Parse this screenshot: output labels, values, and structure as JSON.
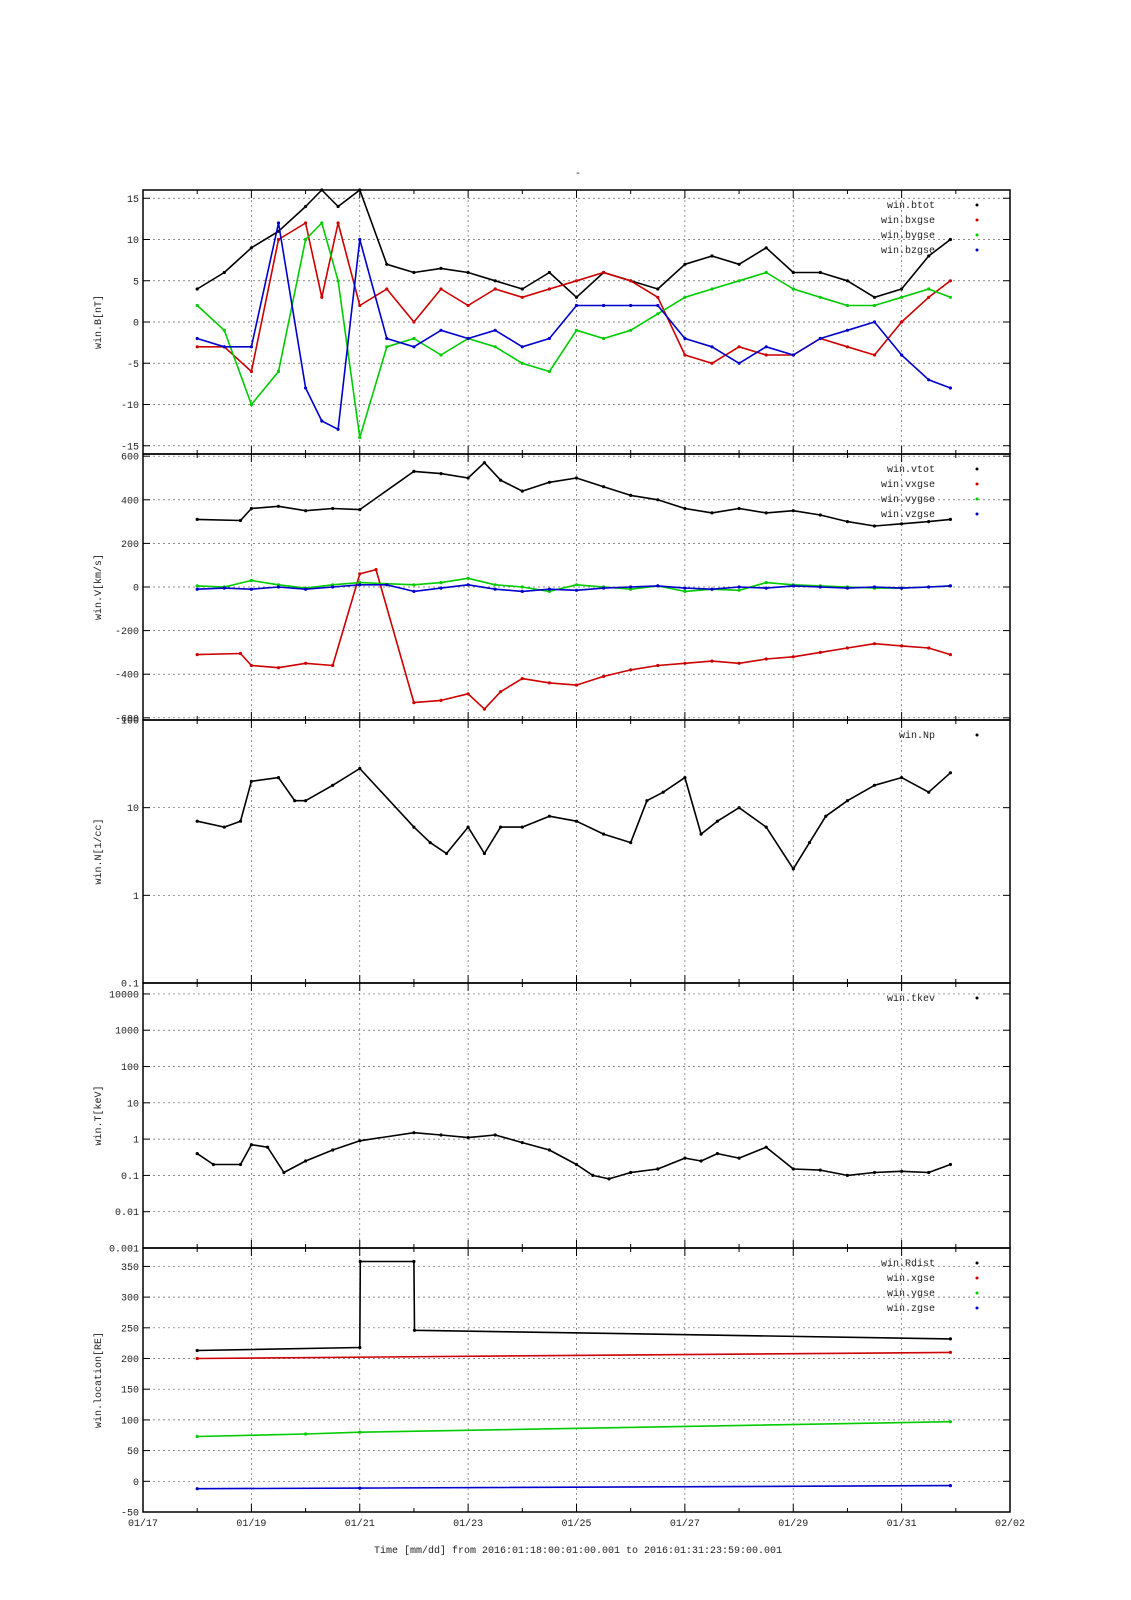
{
  "figure": {
    "title": "-",
    "x_axis": {
      "tick_labels": [
        "01/17",
        "01/19",
        "01/21",
        "01/23",
        "01/25",
        "01/27",
        "01/29",
        "01/31",
        "02/02"
      ],
      "xlabel": "Time [mm/dd]  from 2016:01:18:00:01:00.001  to  2016:01:31:23:59:00.001"
    }
  },
  "colors": {
    "black": "#000000",
    "red": "#cc0000",
    "green": "#00cc00",
    "blue": "#0000cc"
  },
  "chart_data": [
    {
      "type": "scatter",
      "ylabel": "win.B[nT]",
      "xlim": [
        17,
        33
      ],
      "ylim": [
        -16,
        16
      ],
      "yticks": [
        -15,
        -10,
        -5,
        0,
        5,
        10,
        15
      ],
      "legend_position": "top-right",
      "series": [
        {
          "name": "win.btot",
          "color": "#000000",
          "x": [
            18,
            18.5,
            19,
            19.5,
            20,
            20.3,
            20.6,
            21,
            21.5,
            22,
            22.5,
            23,
            23.5,
            24,
            24.5,
            25,
            25.5,
            26,
            26.5,
            27,
            27.5,
            28,
            28.5,
            29,
            29.5,
            30,
            30.5,
            31,
            31.5,
            31.9
          ],
          "y": [
            4,
            6,
            9,
            11,
            14,
            16,
            14,
            16,
            7,
            6,
            6.5,
            6,
            5,
            4,
            6,
            3,
            6,
            5,
            4,
            7,
            8,
            7,
            9,
            6,
            6,
            5,
            3,
            4,
            8,
            10
          ]
        },
        {
          "name": "win.bxgse",
          "color": "#cc0000",
          "x": [
            18,
            18.5,
            19,
            19.5,
            20,
            20.3,
            20.6,
            21,
            21.5,
            22,
            22.5,
            23,
            23.5,
            24,
            24.5,
            25,
            25.5,
            26,
            26.5,
            27,
            27.5,
            28,
            28.5,
            29,
            29.5,
            30,
            30.5,
            31,
            31.5,
            31.9
          ],
          "y": [
            -3,
            -3,
            -6,
            10,
            12,
            3,
            12,
            2,
            4,
            0,
            4,
            2,
            4,
            3,
            4,
            5,
            6,
            5,
            3,
            -4,
            -5,
            -3,
            -4,
            -4,
            -2,
            -3,
            -4,
            0,
            3,
            5
          ]
        },
        {
          "name": "win.bygse",
          "color": "#00cc00",
          "x": [
            18,
            18.5,
            19,
            19.5,
            20,
            20.3,
            20.6,
            21,
            21.5,
            22,
            22.5,
            23,
            23.5,
            24,
            24.5,
            25,
            25.5,
            26,
            26.5,
            27,
            27.5,
            28,
            28.5,
            29,
            29.5,
            30,
            30.5,
            31,
            31.5,
            31.9
          ],
          "y": [
            2,
            -1,
            -10,
            -6,
            10,
            12,
            5,
            -14,
            -3,
            -2,
            -4,
            -2,
            -3,
            -5,
            -6,
            -1,
            -2,
            -1,
            1,
            3,
            4,
            5,
            6,
            4,
            3,
            2,
            2,
            3,
            4,
            3
          ]
        },
        {
          "name": "win.bzgse",
          "color": "#0000cc",
          "x": [
            18,
            18.5,
            19,
            19.5,
            20,
            20.3,
            20.6,
            21,
            21.5,
            22,
            22.5,
            23,
            23.5,
            24,
            24.5,
            25,
            25.5,
            26,
            26.5,
            27,
            27.5,
            28,
            28.5,
            29,
            29.5,
            30,
            30.5,
            31,
            31.5,
            31.9
          ],
          "y": [
            -2,
            -3,
            -3,
            12,
            -8,
            -12,
            -13,
            10,
            -2,
            -3,
            -1,
            -2,
            -1,
            -3,
            -2,
            2,
            2,
            2,
            2,
            -2,
            -3,
            -5,
            -3,
            -4,
            -2,
            -1,
            0,
            -4,
            -7,
            -8
          ]
        }
      ]
    },
    {
      "type": "scatter",
      "ylabel": "win.V[km/s]",
      "xlim": [
        17,
        33
      ],
      "ylim": [
        -610,
        610
      ],
      "yticks": [
        -600,
        -400,
        -200,
        0,
        200,
        400,
        600
      ],
      "legend_position": "top-right",
      "series": [
        {
          "name": "win.vtot",
          "color": "#000000",
          "x": [
            18,
            18.8,
            19,
            19.5,
            20,
            20.5,
            21,
            22,
            22.5,
            23,
            23.3,
            23.6,
            24,
            24.5,
            25,
            25.5,
            26,
            26.5,
            27,
            27.5,
            28,
            28.5,
            29,
            29.5,
            30,
            30.5,
            31,
            31.5,
            31.9
          ],
          "y": [
            310,
            305,
            360,
            370,
            350,
            360,
            355,
            530,
            520,
            500,
            570,
            490,
            440,
            480,
            500,
            460,
            420,
            400,
            360,
            340,
            360,
            340,
            350,
            330,
            300,
            280,
            290,
            300,
            310
          ]
        },
        {
          "name": "win.vxgse",
          "color": "#cc0000",
          "x": [
            18,
            18.8,
            19,
            19.5,
            20,
            20.5,
            21,
            21.3,
            22,
            22.5,
            23,
            23.3,
            23.6,
            24,
            24.5,
            25,
            25.5,
            26,
            26.5,
            27,
            27.5,
            28,
            28.5,
            29,
            29.5,
            30,
            30.5,
            31,
            31.5,
            31.9
          ],
          "y": [
            -310,
            -305,
            -360,
            -370,
            -350,
            -360,
            60,
            80,
            -530,
            -520,
            -490,
            -560,
            -480,
            -420,
            -440,
            -450,
            -410,
            -380,
            -360,
            -350,
            -340,
            -350,
            -330,
            -320,
            -300,
            -280,
            -260,
            -270,
            -280,
            -310
          ]
        },
        {
          "name": "win.vygse",
          "color": "#00cc00",
          "x": [
            18,
            18.5,
            19,
            19.5,
            20,
            20.5,
            21,
            22,
            22.5,
            23,
            23.5,
            24,
            24.5,
            25,
            25.5,
            26,
            26.5,
            27,
            27.5,
            28,
            28.5,
            29,
            29.5,
            30,
            30.5,
            31,
            31.5,
            31.9
          ],
          "y": [
            5,
            0,
            30,
            10,
            -5,
            10,
            20,
            10,
            20,
            40,
            10,
            0,
            -20,
            10,
            0,
            -10,
            5,
            -20,
            -10,
            -15,
            20,
            10,
            5,
            0,
            -5,
            -5,
            0,
            5
          ]
        },
        {
          "name": "win.vzgse",
          "color": "#0000cc",
          "x": [
            18,
            18.5,
            19,
            19.5,
            20,
            20.5,
            21,
            21.5,
            22,
            22.5,
            23,
            23.5,
            24,
            24.5,
            25,
            25.5,
            26,
            26.5,
            27,
            27.5,
            28,
            28.5,
            29,
            29.5,
            30,
            30.5,
            31,
            31.5,
            31.9
          ],
          "y": [
            -10,
            -5,
            -10,
            0,
            -10,
            0,
            10,
            10,
            -20,
            -5,
            10,
            -10,
            -20,
            -10,
            -15,
            -5,
            0,
            5,
            -5,
            -10,
            0,
            -5,
            5,
            0,
            -5,
            0,
            -5,
            0,
            5
          ]
        }
      ]
    },
    {
      "type": "scatter",
      "ylabel": "win.N[1/cc]",
      "yscale": "log",
      "xlim": [
        17,
        33
      ],
      "ylim": [
        0.1,
        100
      ],
      "yticks": [
        0.1,
        1,
        10,
        100
      ],
      "legend_position": "top-right",
      "series": [
        {
          "name": "win.Np",
          "color": "#000000",
          "x": [
            18,
            18.5,
            18.8,
            19,
            19.5,
            19.8,
            20,
            20.5,
            21,
            22,
            22.3,
            22.6,
            23,
            23.3,
            23.6,
            24,
            24.5,
            25,
            25.5,
            26,
            26.3,
            26.6,
            27,
            27.3,
            27.6,
            28,
            28.5,
            29,
            29.3,
            29.6,
            30,
            30.5,
            31,
            31.5,
            31.9
          ],
          "y": [
            7,
            6,
            7,
            20,
            22,
            12,
            12,
            18,
            28,
            6,
            4,
            3,
            6,
            3,
            6,
            6,
            8,
            7,
            5,
            4,
            12,
            15,
            22,
            5,
            7,
            10,
            6,
            2,
            4,
            8,
            12,
            18,
            22,
            15,
            25
          ]
        }
      ]
    },
    {
      "type": "scatter",
      "ylabel": "win.T[keV]",
      "yscale": "log",
      "xlim": [
        17,
        33
      ],
      "ylim": [
        0.001,
        20000
      ],
      "yticks": [
        0.001,
        0.01,
        0.1,
        1,
        10,
        100,
        1000,
        10000
      ],
      "legend_position": "top-right",
      "series": [
        {
          "name": "win.tkev",
          "color": "#000000",
          "x": [
            18,
            18.3,
            18.8,
            19,
            19.3,
            19.6,
            20,
            20.5,
            21,
            22,
            22.5,
            23,
            23.5,
            24,
            24.5,
            25,
            25.3,
            25.6,
            26,
            26.5,
            27,
            27.3,
            27.6,
            28,
            28.5,
            29,
            29.5,
            30,
            30.5,
            31,
            31.5,
            31.9
          ],
          "y": [
            0.4,
            0.2,
            0.2,
            0.7,
            0.6,
            0.12,
            0.25,
            0.5,
            0.9,
            1.5,
            1.3,
            1.1,
            1.3,
            0.8,
            0.5,
            0.2,
            0.1,
            0.08,
            0.12,
            0.15,
            0.3,
            0.25,
            0.4,
            0.3,
            0.6,
            0.15,
            0.14,
            0.1,
            0.12,
            0.13,
            0.12,
            0.2
          ]
        }
      ]
    },
    {
      "type": "scatter",
      "ylabel": "win.location[RE]",
      "xlim": [
        17,
        33
      ],
      "ylim": [
        -50,
        380
      ],
      "yticks": [
        -50,
        0,
        50,
        100,
        150,
        200,
        250,
        300,
        350
      ],
      "legend_position": "top-right",
      "series": [
        {
          "name": "win.Rdist",
          "color": "#000000",
          "x": [
            18,
            21,
            21.01,
            22,
            22.01,
            31.9
          ],
          "y": [
            213,
            218,
            358,
            358,
            246,
            232
          ]
        },
        {
          "name": "win.xgse",
          "color": "#cc0000",
          "x": [
            18,
            31.9
          ],
          "y": [
            200,
            210
          ]
        },
        {
          "name": "win.ygse",
          "color": "#00cc00",
          "x": [
            18,
            20,
            21,
            31.9
          ],
          "y": [
            73,
            77,
            80,
            97
          ]
        },
        {
          "name": "win.zgse",
          "color": "#0000cc",
          "x": [
            18,
            21,
            31.9
          ],
          "y": [
            -12,
            -11,
            -7
          ]
        }
      ]
    }
  ]
}
